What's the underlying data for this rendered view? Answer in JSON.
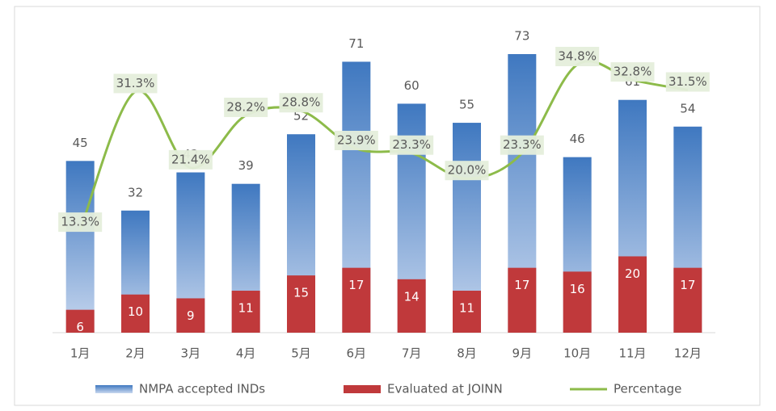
{
  "chart_data": {
    "type": "bar",
    "categories": [
      "1月",
      "2月",
      "3月",
      "4月",
      "5月",
      "6月",
      "7月",
      "8月",
      "9月",
      "10月",
      "11月",
      "12月"
    ],
    "series": [
      {
        "name": "NMPA accepted INDs",
        "color": "#3f78c0",
        "values": [
          45,
          32,
          42,
          39,
          52,
          71,
          60,
          55,
          73,
          46,
          61,
          54
        ]
      },
      {
        "name": "Evaluated at JOINN",
        "color": "#c0393b",
        "values": [
          6,
          10,
          9,
          11,
          15,
          17,
          14,
          11,
          17,
          16,
          20,
          17
        ]
      },
      {
        "name": "Percentage",
        "color": "#8dbb4a",
        "type": "line",
        "axis": "y2",
        "values": [
          13.3,
          31.3,
          21.4,
          28.2,
          28.8,
          23.9,
          23.3,
          20.0,
          23.3,
          34.8,
          32.8,
          31.5
        ],
        "value_labels": [
          "13.3%",
          "31.3%",
          "21.4%",
          "28.2%",
          "28.8%",
          "23.9%",
          "23.3%",
          "20.0%",
          "23.3%",
          "34.8%",
          "32.8%",
          "31.5%"
        ]
      }
    ],
    "legend": "bottom"
  }
}
